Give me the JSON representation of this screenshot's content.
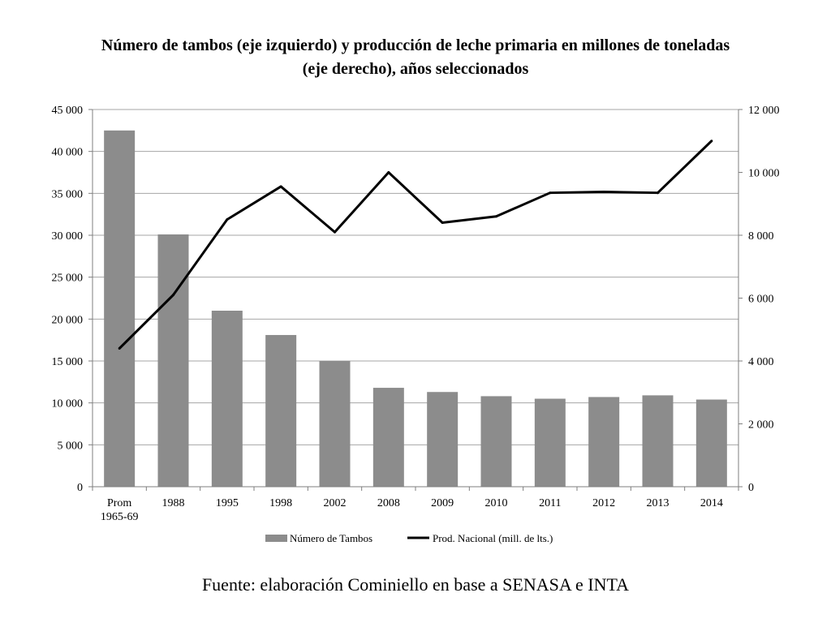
{
  "page": {
    "title_line1": "Número de tambos (eje izquierdo) y producción de leche primaria en millones de toneladas",
    "title_line2": "(eje derecho), años seleccionados",
    "source": "Fuente: elaboración Cominiello en base a SENASA e INTA"
  },
  "colors": {
    "bar": "#8c8c8c",
    "line": "#000000",
    "grid": "#a6a6a6",
    "axis": "#7f7f7f"
  },
  "chart_data": {
    "type": "bar",
    "categories": [
      "Prom\n1965-69",
      "1988",
      "1995",
      "1998",
      "2002",
      "2008",
      "2009",
      "2010",
      "2011",
      "2012",
      "2013",
      "2014"
    ],
    "series": [
      {
        "name": "Número de Tambos",
        "type": "bar",
        "axis": "left",
        "values": [
          42500,
          30100,
          21000,
          18100,
          15000,
          11800,
          11300,
          10800,
          10500,
          10700,
          10900,
          10400
        ]
      },
      {
        "name": "Prod. Nacional (mill. de lts.)",
        "type": "line",
        "axis": "right",
        "values": [
          4400,
          6100,
          8500,
          9550,
          8100,
          10000,
          8400,
          8600,
          9350,
          9380,
          9350,
          11000
        ]
      }
    ],
    "ylim_left": [
      0,
      45000
    ],
    "ylim_right": [
      0,
      12000
    ],
    "yticks_left": [
      "0",
      "5 000",
      "10 000",
      "15 000",
      "20 000",
      "25 000",
      "30 000",
      "35 000",
      "40 000",
      "45 000"
    ],
    "yticks_right": [
      "0",
      "2 000",
      "4 000",
      "6 000",
      "8 000",
      "10 000",
      "12 000"
    ],
    "grid": true,
    "legend_position": "bottom"
  }
}
